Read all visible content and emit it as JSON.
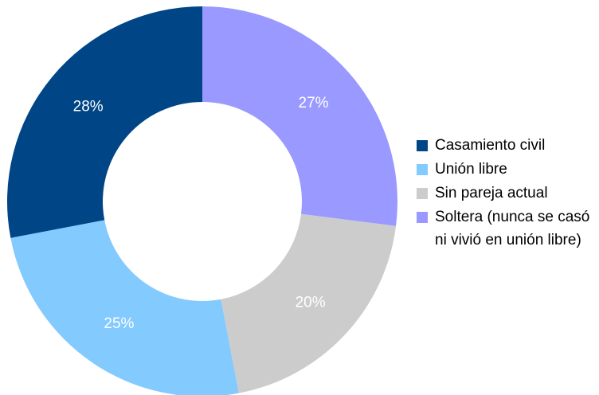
{
  "chart_data": {
    "type": "donut",
    "categories": [
      "Casamiento civil",
      "Unión libre",
      "Sin pareja actual",
      "Soltera (nunca se casó ni vivió en unión libre)"
    ],
    "values": [
      28,
      25,
      20,
      27
    ],
    "value_labels": [
      "28%",
      "25%",
      "20%",
      "27%"
    ],
    "colors": [
      "#004586",
      "#83caff",
      "#cccccc",
      "#9999ff"
    ],
    "legend": "right"
  }
}
